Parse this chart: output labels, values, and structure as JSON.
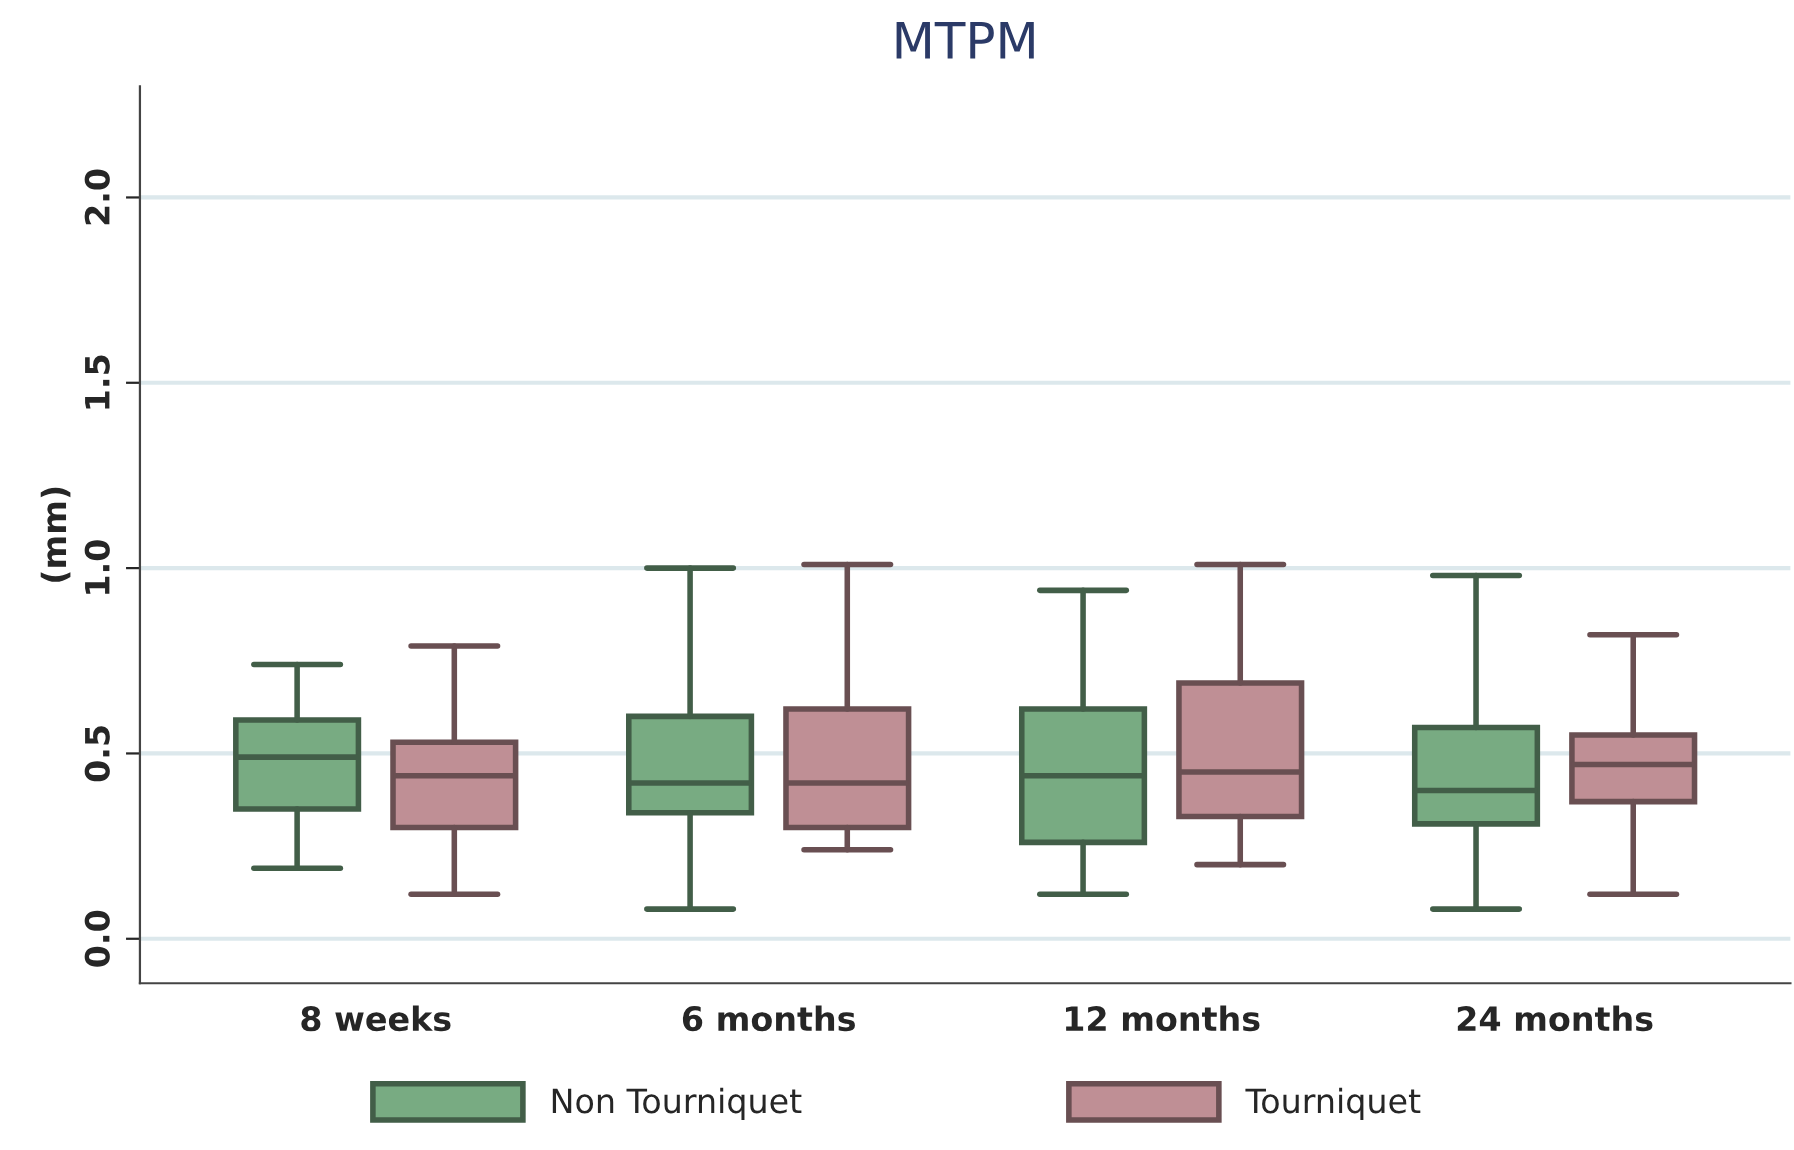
{
  "chart_data": {
    "type": "box",
    "title": "MTPM",
    "ylabel": "(mm)",
    "categories": [
      "8 weeks",
      "6 months",
      "12 months",
      "24 months"
    ],
    "ylim": [
      -0.12,
      2.3
    ],
    "yticks": [
      {
        "value": 0,
        "label": "0.0"
      },
      0.5,
      {
        "value": 1,
        "label": "1.0"
      },
      1.5,
      {
        "value": 2,
        "label": "2.0"
      }
    ],
    "grid": "y",
    "legend": "bottom",
    "series": [
      {
        "name": "Non Tourniquet",
        "color": "#78ab82",
        "boxes": [
          {
            "low": 0.19,
            "q1": 0.35,
            "median": 0.49,
            "q3": 0.59,
            "high": 0.74
          },
          {
            "low": 0.08,
            "q1": 0.34,
            "median": 0.42,
            "q3": 0.6,
            "high": 1.0
          },
          {
            "low": 0.12,
            "q1": 0.26,
            "median": 0.44,
            "q3": 0.62,
            "high": 0.94
          },
          {
            "low": 0.08,
            "q1": 0.31,
            "median": 0.4,
            "q3": 0.57,
            "high": 0.98
          }
        ]
      },
      {
        "name": "Tourniquet",
        "color": "#bf8f95",
        "boxes": [
          {
            "low": 0.12,
            "q1": 0.3,
            "median": 0.44,
            "q3": 0.53,
            "high": 0.79
          },
          {
            "low": 0.24,
            "q1": 0.3,
            "median": 0.42,
            "q3": 0.62,
            "high": 1.01
          },
          {
            "low": 0.2,
            "q1": 0.33,
            "median": 0.45,
            "q3": 0.69,
            "high": 1.01
          },
          {
            "low": 0.12,
            "q1": 0.37,
            "median": 0.47,
            "q3": 0.55,
            "high": 0.82
          }
        ]
      }
    ]
  }
}
